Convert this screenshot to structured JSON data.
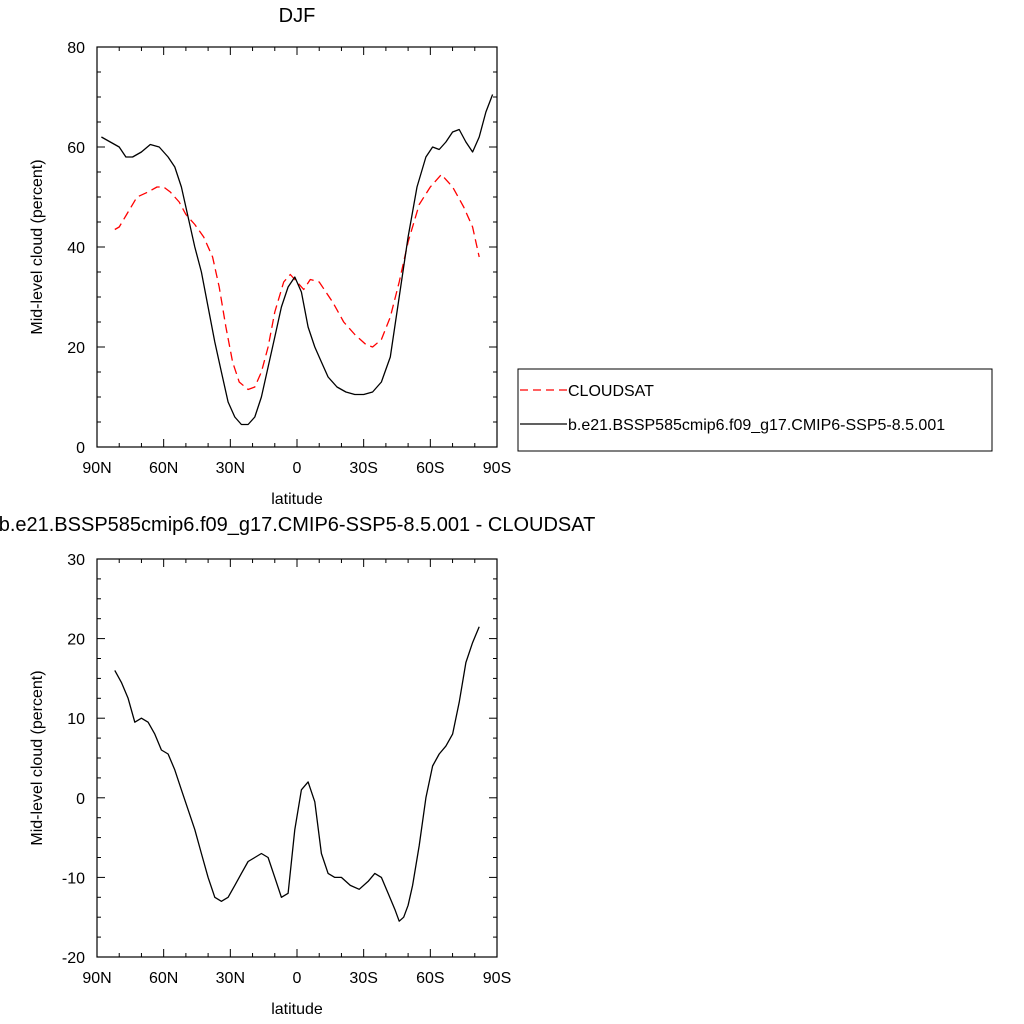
{
  "colors": {
    "cloudsat": "#ff0000",
    "model": "#000000",
    "legend_border": "#000000"
  },
  "chart_data": [
    {
      "type": "line",
      "title": "DJF",
      "xlabel": "latitude",
      "ylabel": "Mid-level cloud (percent)",
      "xlim": [
        90,
        -90
      ],
      "ylim": [
        0,
        80
      ],
      "x_ticks": [
        90,
        60,
        30,
        0,
        -30,
        -60,
        -90
      ],
      "x_tick_labels": [
        "90N",
        "60N",
        "30N",
        "0",
        "30S",
        "60S",
        "90S"
      ],
      "y_ticks": [
        0,
        20,
        40,
        60,
        80
      ],
      "y_tick_labels": [
        "0",
        "20",
        "40",
        "60",
        "80"
      ],
      "grid": false,
      "legend_position": "right",
      "series": [
        {
          "name": "CLOUDSAT",
          "style": "dashed",
          "color": "#ff0000",
          "x": [
            82,
            80,
            76,
            72,
            67,
            63,
            60,
            57,
            53,
            50,
            46,
            42,
            38,
            35,
            32,
            29,
            26,
            22,
            19,
            16,
            13,
            10,
            6,
            3,
            1,
            -3,
            -6,
            -10,
            -16,
            -21,
            -26,
            -31,
            -34,
            -38,
            -42,
            -46,
            -50,
            -55,
            -60,
            -65,
            -70,
            -75,
            -79,
            -82
          ],
          "y": [
            43.5,
            44,
            47,
            50,
            51,
            52,
            52,
            51,
            49,
            46.5,
            44.5,
            42,
            38,
            32,
            24,
            17,
            13,
            11.5,
            12,
            15,
            20,
            27,
            33,
            34.5,
            33.5,
            31.5,
            33.5,
            33,
            29,
            25,
            22.5,
            20.5,
            20,
            21.5,
            26,
            33,
            41,
            48.5,
            52,
            54.5,
            52,
            48,
            44,
            38
          ]
        },
        {
          "name": "b.e21.BSSP585cmip6.f09_g17.CMIP6-SSP5-8.5.001",
          "style": "solid",
          "color": "#000000",
          "x": [
            88,
            84,
            80,
            77,
            74,
            70,
            66,
            62,
            58,
            55,
            52,
            49,
            46,
            43,
            40,
            37,
            34,
            31,
            28,
            25,
            22,
            19,
            16,
            13,
            10,
            7,
            4,
            1,
            -2,
            -5,
            -8,
            -11,
            -14,
            -18,
            -22,
            -26,
            -30,
            -34,
            -38,
            -42,
            -46,
            -50,
            -54,
            -58,
            -61,
            -64,
            -67,
            -70,
            -73,
            -76,
            -79,
            -82,
            -85,
            -88
          ],
          "y": [
            62,
            61,
            60,
            58,
            58,
            59,
            60.5,
            60,
            58,
            56,
            52,
            46,
            40,
            35,
            28,
            21,
            15,
            9,
            6,
            4.5,
            4.5,
            6,
            10,
            16,
            22,
            28,
            32,
            34,
            31,
            24,
            20,
            17,
            14,
            12,
            11,
            10.5,
            10.5,
            11,
            13,
            18,
            30,
            42,
            52,
            58,
            60,
            59.5,
            61,
            63,
            63.5,
            61,
            59,
            62,
            67,
            70.5
          ]
        }
      ]
    },
    {
      "type": "line",
      "title": "b.e21.BSSP585cmip6.f09_g17.CMIP6-SSP5-8.5.001 - CLOUDSAT",
      "xlabel": "latitude",
      "ylabel": "Mid-level cloud (percent)",
      "xlim": [
        90,
        -90
      ],
      "ylim": [
        -20,
        30
      ],
      "x_ticks": [
        90,
        60,
        30,
        0,
        -30,
        -60,
        -90
      ],
      "x_tick_labels": [
        "90N",
        "60N",
        "30N",
        "0",
        "30S",
        "60S",
        "90S"
      ],
      "y_ticks": [
        -20,
        -10,
        0,
        10,
        20,
        30
      ],
      "y_tick_labels": [
        "-20",
        "-10",
        "0",
        "10",
        "20",
        "30"
      ],
      "grid": false,
      "series": [
        {
          "style": "solid",
          "color": "#000000",
          "x": [
            82,
            79,
            76,
            73,
            70,
            67,
            64,
            61,
            58,
            55,
            52,
            49,
            46,
            43,
            40,
            37,
            34,
            31,
            28,
            25,
            22,
            19,
            16,
            13,
            10,
            7,
            4,
            1,
            -2,
            -5,
            -8,
            -11,
            -14,
            -17,
            -20,
            -24,
            -28,
            -32,
            -35,
            -38,
            -41,
            -44,
            -46,
            -48,
            -50,
            -52,
            -55,
            -58,
            -61,
            -64,
            -67,
            -70,
            -73,
            -76,
            -79,
            -82
          ],
          "y": [
            16,
            14.5,
            12.5,
            9.5,
            10,
            9.5,
            8,
            6,
            5.5,
            3.5,
            1,
            -1.5,
            -4,
            -7,
            -10,
            -12.5,
            -13,
            -12.5,
            -11,
            -9.5,
            -8,
            -7.5,
            -7,
            -7.5,
            -10,
            -12.5,
            -12,
            -4,
            1,
            2,
            -0.5,
            -7,
            -9.5,
            -10,
            -10,
            -11,
            -11.5,
            -10.5,
            -9.5,
            -10,
            -12,
            -14,
            -15.5,
            -15,
            -13.5,
            -11,
            -6,
            0,
            4,
            5.5,
            6.5,
            8,
            12,
            17,
            19.5,
            21.5
          ]
        }
      ]
    }
  ]
}
